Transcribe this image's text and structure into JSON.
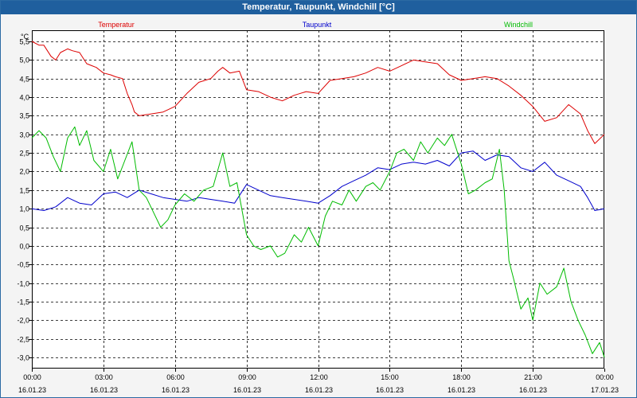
{
  "window": {
    "title": "Temperatur, Taupunkt, Windchill [°C]"
  },
  "chart_data": {
    "type": "line",
    "title": "Temperatur, Taupunkt, Windchill [°C]",
    "ylabel": "°C",
    "xlabel": "",
    "ylim": [
      -3.3,
      5.8
    ],
    "y_ticks": [
      5.5,
      5.0,
      4.5,
      4.0,
      3.5,
      3.0,
      2.5,
      2.0,
      1.5,
      1.0,
      0.5,
      0.0,
      -0.5,
      -1.0,
      -1.5,
      -2.0,
      -2.5,
      -3.0
    ],
    "y_tick_labels": [
      "5,5",
      "5,0",
      "4,5",
      "4,0",
      "3,5",
      "3,0",
      "2,5",
      "2,0",
      "1,5",
      "1,0",
      "0,5",
      "0,0",
      "-0,5",
      "-1,0",
      "-1,5",
      "-2,0",
      "-2,5",
      "-3,0"
    ],
    "xlim": [
      0,
      24
    ],
    "x_ticks": [
      0,
      3,
      6,
      9,
      12,
      15,
      18,
      21,
      24
    ],
    "x_tick_times": [
      "00:00",
      "03:00",
      "06:00",
      "09:00",
      "12:00",
      "15:00",
      "18:00",
      "21:00",
      "00:00"
    ],
    "x_tick_dates": [
      "16.01.23",
      "16.01.23",
      "16.01.23",
      "16.01.23",
      "16.01.23",
      "16.01.23",
      "16.01.23",
      "16.01.23",
      "17.01.23"
    ],
    "grid": true,
    "series": [
      {
        "name": "Temperatur",
        "color": "#dd0000",
        "x": [
          0,
          0.3,
          0.5,
          0.8,
          1.0,
          1.2,
          1.5,
          1.7,
          2.0,
          2.3,
          2.5,
          2.7,
          3.0,
          3.3,
          3.5,
          3.8,
          4.0,
          4.2,
          4.3,
          4.5,
          5.0,
          5.5,
          6.0,
          6.5,
          7.0,
          7.5,
          7.8,
          8.0,
          8.3,
          8.7,
          9.0,
          9.5,
          10.0,
          10.5,
          11.0,
          11.5,
          12.0,
          12.5,
          13.0,
          13.5,
          14.0,
          14.5,
          15.0,
          15.5,
          16.0,
          16.5,
          17.0,
          17.5,
          18.0,
          18.5,
          19.0,
          19.5,
          20.0,
          20.5,
          21.0,
          21.5,
          22.0,
          22.5,
          23.0,
          23.3,
          23.6,
          24.0
        ],
        "values": [
          5.5,
          5.4,
          5.4,
          5.1,
          5.0,
          5.2,
          5.3,
          5.25,
          5.2,
          4.9,
          4.85,
          4.8,
          4.65,
          4.6,
          4.55,
          4.5,
          4.1,
          3.8,
          3.6,
          3.5,
          3.55,
          3.6,
          3.75,
          4.1,
          4.4,
          4.5,
          4.7,
          4.8,
          4.65,
          4.7,
          4.2,
          4.15,
          4.0,
          3.9,
          4.05,
          4.15,
          4.1,
          4.45,
          4.5,
          4.55,
          4.65,
          4.8,
          4.7,
          4.85,
          5.0,
          4.95,
          4.9,
          4.6,
          4.45,
          4.5,
          4.55,
          4.5,
          4.3,
          4.05,
          3.75,
          3.35,
          3.45,
          3.8,
          3.55,
          3.1,
          2.75,
          3.0
        ]
      },
      {
        "name": "Taupunkt",
        "color": "#0000cc",
        "x": [
          0,
          0.5,
          1.0,
          1.5,
          2.0,
          2.5,
          3.0,
          3.5,
          4.0,
          4.5,
          5.0,
          5.5,
          6.0,
          6.5,
          7.0,
          7.5,
          8.0,
          8.5,
          9.0,
          9.5,
          10.0,
          10.5,
          11.0,
          11.5,
          12.0,
          12.5,
          13.0,
          13.5,
          14.0,
          14.5,
          15.0,
          15.5,
          16.0,
          16.5,
          17.0,
          17.5,
          18.0,
          18.5,
          19.0,
          19.5,
          20.0,
          20.5,
          21.0,
          21.5,
          22.0,
          22.5,
          23.0,
          23.3,
          23.6,
          24.0
        ],
        "values": [
          1.0,
          0.95,
          1.05,
          1.3,
          1.15,
          1.1,
          1.4,
          1.45,
          1.3,
          1.5,
          1.4,
          1.3,
          1.25,
          1.2,
          1.3,
          1.25,
          1.2,
          1.15,
          1.65,
          1.5,
          1.35,
          1.3,
          1.25,
          1.2,
          1.15,
          1.35,
          1.6,
          1.75,
          1.9,
          2.1,
          2.05,
          2.2,
          2.25,
          2.2,
          2.3,
          2.15,
          2.5,
          2.55,
          2.3,
          2.45,
          2.4,
          2.1,
          2.0,
          2.25,
          1.9,
          1.75,
          1.6,
          1.3,
          0.95,
          1.0
        ]
      },
      {
        "name": "Windchill",
        "color": "#00bb00",
        "x": [
          0,
          0.3,
          0.6,
          0.9,
          1.2,
          1.5,
          1.8,
          2.0,
          2.3,
          2.6,
          3.0,
          3.3,
          3.6,
          3.9,
          4.2,
          4.5,
          4.8,
          5.1,
          5.4,
          5.7,
          6.0,
          6.4,
          6.8,
          7.2,
          7.6,
          8.0,
          8.3,
          8.6,
          9.0,
          9.3,
          9.6,
          10.0,
          10.3,
          10.6,
          11.0,
          11.3,
          11.6,
          12.0,
          12.3,
          12.6,
          13.0,
          13.3,
          13.6,
          14.0,
          14.3,
          14.6,
          15.0,
          15.3,
          15.6,
          16.0,
          16.3,
          16.6,
          17.0,
          17.3,
          17.6,
          18.0,
          18.3,
          18.6,
          19.0,
          19.3,
          19.6,
          19.8,
          20.0,
          20.2,
          20.5,
          20.8,
          21.0,
          21.3,
          21.6,
          22.0,
          22.3,
          22.6,
          22.9,
          23.2,
          23.5,
          23.8,
          24.0
        ],
        "values": [
          2.9,
          3.1,
          2.9,
          2.4,
          2.0,
          2.9,
          3.2,
          2.7,
          3.1,
          2.3,
          2.0,
          2.6,
          1.8,
          2.3,
          2.8,
          1.5,
          1.3,
          0.9,
          0.5,
          0.7,
          1.1,
          1.4,
          1.2,
          1.5,
          1.6,
          2.5,
          1.6,
          1.7,
          0.3,
          0.0,
          -0.1,
          0.0,
          -0.3,
          -0.2,
          0.3,
          0.1,
          0.5,
          0.0,
          0.8,
          1.2,
          1.1,
          1.5,
          1.2,
          1.6,
          1.7,
          1.5,
          2.0,
          2.5,
          2.6,
          2.3,
          2.8,
          2.5,
          2.9,
          2.7,
          3.0,
          2.2,
          1.4,
          1.5,
          1.7,
          1.8,
          2.6,
          1.5,
          -0.4,
          -0.9,
          -1.7,
          -1.4,
          -2.0,
          -1.0,
          -1.3,
          -1.1,
          -0.6,
          -1.5,
          -2.0,
          -2.4,
          -2.9,
          -2.6,
          -3.0
        ]
      }
    ]
  }
}
